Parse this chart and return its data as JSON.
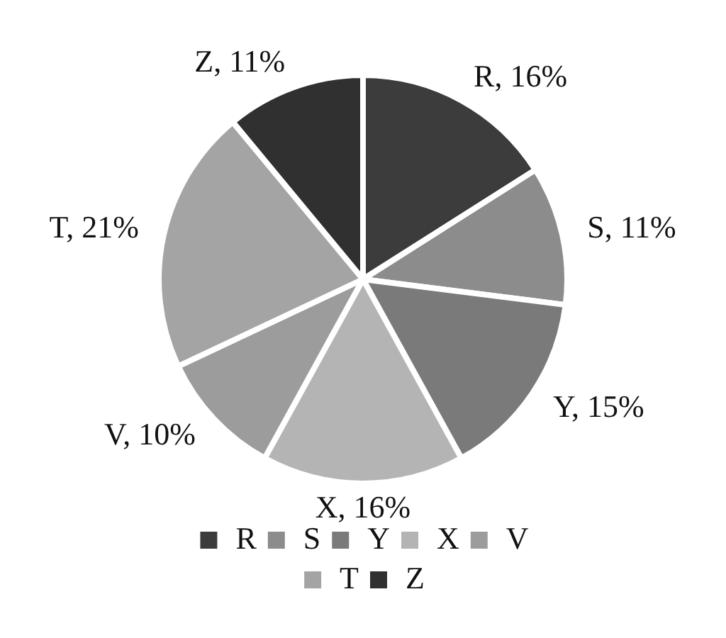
{
  "chart_data": {
    "type": "pie",
    "categories": [
      "R",
      "S",
      "Y",
      "X",
      "V",
      "T",
      "Z"
    ],
    "values": [
      16,
      11,
      15,
      16,
      10,
      21,
      11
    ],
    "colors": [
      "#3c3c3c",
      "#8c8c8c",
      "#7a7a7a",
      "#b4b4b4",
      "#9c9c9c",
      "#a4a4a4",
      "#303030"
    ],
    "value_labels": [
      "R, 16%",
      "S, 11%",
      "Y, 15%",
      "X, 16%",
      "V, 10%",
      "T, 21%",
      "Z, 11%"
    ],
    "legend": "bottom"
  }
}
